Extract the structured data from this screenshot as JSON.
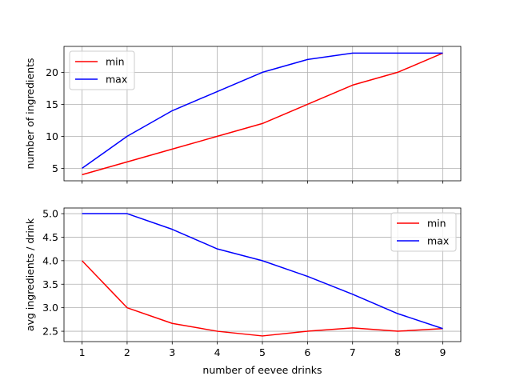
{
  "chart_data": [
    {
      "type": "line",
      "title": "",
      "xlabel": "",
      "ylabel": "number of ingredients",
      "x": [
        1,
        2,
        3,
        4,
        5,
        6,
        7,
        8,
        9
      ],
      "xlim": [
        0.6,
        9.4
      ],
      "ylim": [
        3.05,
        24.05
      ],
      "xticks": [
        1,
        2,
        3,
        4,
        5,
        6,
        7,
        8,
        9
      ],
      "xtick_labels_visible": false,
      "yticks": [
        5,
        10,
        15,
        20
      ],
      "ytick_labels": [
        "5",
        "10",
        "15",
        "20"
      ],
      "grid": true,
      "legend": "upper left",
      "series": [
        {
          "name": "min",
          "color": "#ff0000",
          "values": [
            4,
            6,
            8,
            10,
            12,
            15,
            18,
            20,
            23
          ]
        },
        {
          "name": "max",
          "color": "#0000ff",
          "values": [
            5,
            10,
            14,
            17,
            20,
            22,
            23,
            23,
            23
          ]
        }
      ]
    },
    {
      "type": "line",
      "title": "",
      "xlabel": "number of eevee drinks",
      "ylabel": "avg ingredients / drink",
      "x": [
        1,
        2,
        3,
        4,
        5,
        6,
        7,
        8,
        9
      ],
      "xlim": [
        0.6,
        9.4
      ],
      "ylim": [
        2.28,
        5.12
      ],
      "xticks": [
        1,
        2,
        3,
        4,
        5,
        6,
        7,
        8,
        9
      ],
      "xtick_labels": [
        "1",
        "2",
        "3",
        "4",
        "5",
        "6",
        "7",
        "8",
        "9"
      ],
      "yticks": [
        2.5,
        3.0,
        3.5,
        4.0,
        4.5,
        5.0
      ],
      "ytick_labels": [
        "2.5",
        "3.0",
        "3.5",
        "4.0",
        "4.5",
        "5.0"
      ],
      "grid": true,
      "legend": "upper right",
      "series": [
        {
          "name": "min",
          "color": "#ff0000",
          "values": [
            4.0,
            3.0,
            2.667,
            2.5,
            2.4,
            2.5,
            2.571,
            2.5,
            2.556
          ]
        },
        {
          "name": "max",
          "color": "#0000ff",
          "values": [
            5.0,
            5.0,
            4.667,
            4.25,
            4.0,
            3.667,
            3.286,
            2.875,
            2.556
          ]
        }
      ]
    }
  ]
}
